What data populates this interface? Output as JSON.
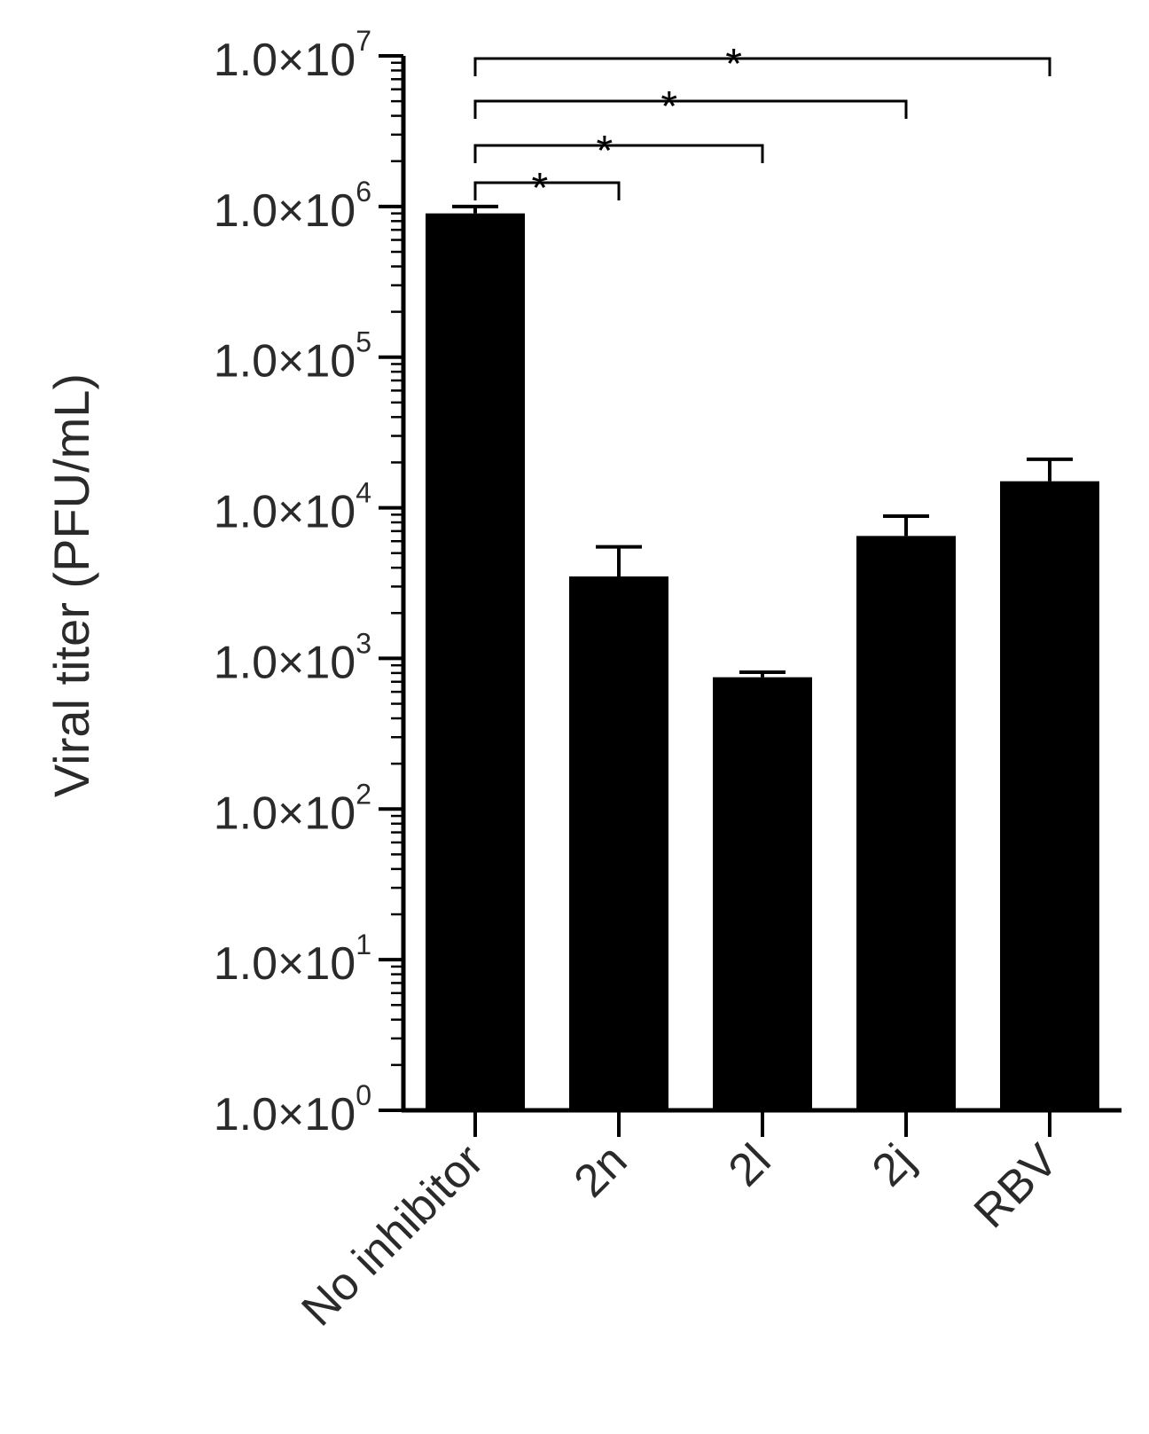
{
  "chart_data": {
    "type": "bar",
    "ylabel": "Viral titer (PFU/mL)",
    "yscale": "log",
    "ylim": [
      1,
      10000000
    ],
    "categories": [
      "No inhibitor",
      "2n",
      "2l",
      "2j",
      "RBV"
    ],
    "values": [
      900000,
      3500,
      750,
      6500,
      15000
    ],
    "errors": [
      1000000,
      5500,
      810,
      8800,
      21000
    ],
    "y_ticks": [
      {
        "value": 1,
        "base": "1.0×10",
        "exp": "0"
      },
      {
        "value": 10,
        "base": "1.0×10",
        "exp": "1"
      },
      {
        "value": 100,
        "base": "1.0×10",
        "exp": "2"
      },
      {
        "value": 1000,
        "base": "1.0×10",
        "exp": "3"
      },
      {
        "value": 10000,
        "base": "1.0×10",
        "exp": "4"
      },
      {
        "value": 100000,
        "base": "1.0×10",
        "exp": "5"
      },
      {
        "value": 1000000,
        "base": "1.0×10",
        "exp": "6"
      },
      {
        "value": 10000000,
        "base": "1.0×10",
        "exp": "7"
      }
    ],
    "significance": [
      {
        "from": "No inhibitor",
        "to": "2n",
        "label": "*"
      },
      {
        "from": "No inhibitor",
        "to": "2l",
        "label": "*"
      },
      {
        "from": "No inhibitor",
        "to": "2j",
        "label": "*"
      },
      {
        "from": "No inhibitor",
        "to": "RBV",
        "label": "*"
      }
    ],
    "colors": {
      "bar": "#000000",
      "axis": "#000000",
      "text": "#2a2a2a"
    },
    "grid": false,
    "legend": "none"
  }
}
